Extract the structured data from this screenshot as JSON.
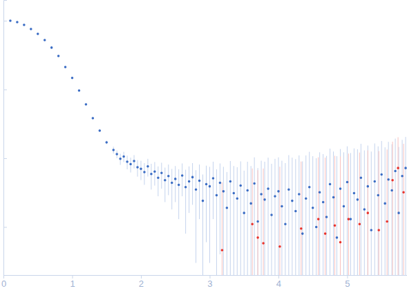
{
  "chart_data": {
    "type": "scatter",
    "log": "y",
    "tick_labels": "x",
    "xlim": [
      0,
      5.87
    ],
    "xticks": [
      0,
      1,
      2,
      3,
      4,
      5
    ],
    "ylim": [
      0.0002,
      2
    ],
    "yticks": [
      1,
      0.1,
      0.01,
      0.001
    ],
    "series": [
      {
        "color": "#3a6cc4",
        "marker": "circle",
        "x": [
          0.1,
          0.2,
          0.3,
          0.4,
          0.5,
          0.6,
          0.7,
          0.8,
          0.9,
          1.0,
          1.1,
          1.2,
          1.3,
          1.4,
          1.5,
          1.6,
          1.65,
          1.7,
          1.75,
          1.8,
          1.85,
          1.9,
          1.95,
          2.0,
          2.05,
          2.1,
          2.15,
          2.2,
          2.25,
          2.3,
          2.35,
          2.4,
          2.45,
          2.5,
          2.55,
          2.6,
          2.65,
          2.7,
          2.75,
          2.8,
          2.85,
          2.9,
          2.95,
          3.0,
          3.05,
          3.1,
          3.15,
          3.2,
          3.25,
          3.3,
          3.35,
          3.4,
          3.45,
          3.5,
          3.55,
          3.6,
          3.65,
          3.7,
          3.75,
          3.8,
          3.85,
          3.9,
          3.95,
          4.0,
          4.05,
          4.1,
          4.15,
          4.2,
          4.25,
          4.3,
          4.35,
          4.4,
          4.45,
          4.5,
          4.55,
          4.6,
          4.65,
          4.7,
          4.75,
          4.8,
          4.85,
          4.9,
          4.95,
          5.0,
          5.05,
          5.1,
          5.15,
          5.2,
          5.25,
          5.3,
          5.35,
          5.4,
          5.45,
          5.5,
          5.55,
          5.6,
          5.65,
          5.7,
          5.75,
          5.8,
          5.85
        ],
        "values": [
          1.0,
          0.954,
          0.871,
          0.757,
          0.644,
          0.523,
          0.406,
          0.307,
          0.212,
          0.147,
          0.0966,
          0.0608,
          0.0383,
          0.0252,
          0.017,
          0.0132,
          0.0115,
          0.0098,
          0.0106,
          0.0089,
          0.0082,
          0.0091,
          0.0074,
          0.007,
          0.0063,
          0.0076,
          0.0059,
          0.0064,
          0.0052,
          0.0061,
          0.0048,
          0.0055,
          0.0044,
          0.005,
          0.0041,
          0.0056,
          0.0038,
          0.0046,
          0.0053,
          0.0035,
          0.0047,
          0.0024,
          0.0042,
          0.0039,
          0.0051,
          0.0029,
          0.0044,
          0.0033,
          0.0019,
          0.0046,
          0.0031,
          0.0026,
          0.004,
          0.0016,
          0.0034,
          0.0022,
          0.0043,
          0.0012,
          0.003,
          0.0025,
          0.0036,
          0.0015,
          0.0028,
          0.0033,
          0.002,
          0.0011,
          0.0035,
          0.0024,
          0.0017,
          0.003,
          0.0008,
          0.0026,
          0.0038,
          0.0019,
          0.001,
          0.0032,
          0.0023,
          0.0014,
          0.0042,
          0.0027,
          0.0007,
          0.0036,
          0.002,
          0.0045,
          0.0013,
          0.0031,
          0.0025,
          0.0052,
          0.0018,
          0.0039,
          0.0009,
          0.0046,
          0.0029,
          0.0058,
          0.0022,
          0.0049,
          0.0034,
          0.0065,
          0.0016,
          0.0055,
          0.0072
        ],
        "errors": [
          0.002,
          0.002,
          0.002,
          0.002,
          0.002,
          0.002,
          0.002,
          0.002,
          0.002,
          0.002,
          0.001,
          0.001,
          0.001,
          0.001,
          0.001,
          0.0015,
          0.0015,
          0.0018,
          0.0018,
          0.002,
          0.002,
          0.002,
          0.002,
          0.0022,
          0.0022,
          0.0022,
          0.0024,
          0.0024,
          0.0024,
          0.0025,
          0.0025,
          0.0026,
          0.0026,
          0.0027,
          0.0028,
          0.0028,
          0.003,
          0.003,
          0.0032,
          0.0032,
          0.0034,
          0.0034,
          0.0036,
          0.0036,
          0.0038,
          0.004,
          0.004,
          0.0042,
          0.0044,
          0.0045,
          0.0046,
          0.0048,
          0.005,
          0.005,
          0.0055,
          0.0055,
          0.006,
          0.006,
          0.0062,
          0.0064,
          0.0066,
          0.0068,
          0.007,
          0.007,
          0.0072,
          0.0074,
          0.0076,
          0.0078,
          0.008,
          0.008,
          0.0082,
          0.0084,
          0.0086,
          0.0088,
          0.009,
          0.009,
          0.0092,
          0.0094,
          0.0096,
          0.0098,
          0.01,
          0.01,
          0.0102,
          0.0104,
          0.0106,
          0.0108,
          0.011,
          0.011,
          0.0112,
          0.0114,
          0.0116,
          0.0118,
          0.012,
          0.012,
          0.0122,
          0.0124,
          0.0126,
          0.0128,
          0.013,
          0.013,
          0.0132
        ]
      },
      {
        "color": "#e8312a",
        "marker": "circle",
        "x": [
          3.18,
          3.62,
          3.7,
          3.78,
          4.02,
          4.33,
          4.58,
          4.68,
          4.82,
          4.9,
          5.02,
          5.18,
          5.3,
          5.46,
          5.58,
          5.66,
          5.74,
          5.82
        ],
        "values": [
          0.00046,
          0.0011,
          0.0007,
          0.00058,
          0.00052,
          0.00095,
          0.0013,
          0.0008,
          0.00105,
          0.0006,
          0.0013,
          0.0011,
          0.0016,
          0.0009,
          0.0012,
          0.0048,
          0.0072,
          0.0032
        ],
        "errors": [
          0.004,
          0.006,
          0.006,
          0.0065,
          0.007,
          0.008,
          0.009,
          0.0094,
          0.0098,
          0.01,
          0.0104,
          0.011,
          0.0114,
          0.0118,
          0.0122,
          0.0126,
          0.013,
          0.013
        ]
      }
    ]
  }
}
